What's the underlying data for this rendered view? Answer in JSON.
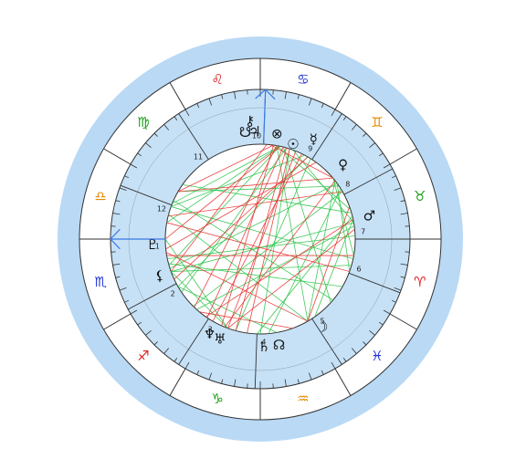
{
  "colors": {
    "halo": "#b9d9f5",
    "house_band": "#c6e1f6",
    "zodiac_band": "#ffffff",
    "line": "#333333",
    "aspect_red": "#e8312f",
    "aspect_green": "#2ec44a",
    "axis": "#3b78e7",
    "fire": "#e01e1e",
    "earth": "#1a9e1a",
    "air": "#e38a00",
    "water": "#1f33d6"
  },
  "signs": [
    {
      "name": "aries",
      "glyph": "♈",
      "element": "fire"
    },
    {
      "name": "taurus",
      "glyph": "♉",
      "element": "earth"
    },
    {
      "name": "gemini",
      "glyph": "♊",
      "element": "air"
    },
    {
      "name": "cancer",
      "glyph": "♋",
      "element": "water"
    },
    {
      "name": "leo",
      "glyph": "♌",
      "element": "fire"
    },
    {
      "name": "virgo",
      "glyph": "♍",
      "element": "earth"
    },
    {
      "name": "libra",
      "glyph": "♎",
      "element": "air"
    },
    {
      "name": "scorpio",
      "glyph": "♏",
      "element": "water"
    },
    {
      "name": "sagittarius",
      "glyph": "♐",
      "element": "fire"
    },
    {
      "name": "capricorn",
      "glyph": "♑",
      "element": "earth"
    },
    {
      "name": "aquarius",
      "glyph": "♒",
      "element": "air"
    },
    {
      "name": "pisces",
      "glyph": "♓",
      "element": "water"
    }
  ],
  "houses": [
    {
      "number": "1"
    },
    {
      "number": "2"
    },
    {
      "number": "3"
    },
    {
      "number": "4"
    },
    {
      "number": "5"
    },
    {
      "number": "6"
    },
    {
      "number": "7"
    },
    {
      "number": "8"
    },
    {
      "number": "9"
    },
    {
      "number": "10"
    },
    {
      "number": "11"
    },
    {
      "number": "12"
    }
  ],
  "planets": [
    {
      "name": "uranus",
      "glyph": "♅"
    },
    {
      "name": "neptune",
      "glyph": "♆"
    },
    {
      "name": "saturn",
      "glyph": "♄"
    },
    {
      "name": "north-node",
      "glyph": "☊"
    },
    {
      "name": "moon",
      "glyph": "☽"
    },
    {
      "name": "mars",
      "glyph": "♂"
    },
    {
      "name": "venus",
      "glyph": "♀"
    },
    {
      "name": "mercury",
      "glyph": "☿"
    },
    {
      "name": "sun",
      "glyph": "☉"
    },
    {
      "name": "part-of-fortune",
      "glyph": "⊗"
    },
    {
      "name": "jupiter",
      "glyph": "♃"
    },
    {
      "name": "chiron",
      "glyph": "⚷"
    },
    {
      "name": "south-node",
      "glyph": "☋"
    },
    {
      "name": "pluto",
      "glyph": "♇"
    },
    {
      "name": "lilith",
      "glyph": "⚸"
    }
  ]
}
